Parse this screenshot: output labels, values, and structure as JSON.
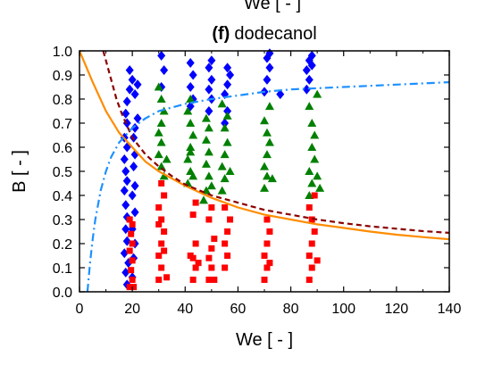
{
  "top_fragment": "We [ - ]",
  "chart_data": {
    "type": "scatter",
    "title_letter": "(f)",
    "title": "dodecanol",
    "xlabel": "We [ - ]",
    "ylabel": "B [ - ]",
    "xlim": [
      0,
      140
    ],
    "ylim": [
      0,
      1.0
    ],
    "xticks": [
      0,
      20,
      40,
      60,
      80,
      100,
      120,
      140
    ],
    "yticks": [
      0.0,
      0.1,
      0.2,
      0.3,
      0.4,
      0.5,
      0.6,
      0.7,
      0.8,
      0.9,
      1.0
    ],
    "ytick_labels": [
      "0.0",
      "0.1",
      "0.2",
      "0.3",
      "0.4",
      "0.5",
      "0.6",
      "0.7",
      "0.8",
      "0.9",
      "1.0"
    ],
    "grid": false,
    "legend": "none",
    "series": [
      {
        "marker": "diamond",
        "color": "#0000ff",
        "points": [
          [
            18,
            0.03
          ],
          [
            17.5,
            0.08
          ],
          [
            18.5,
            0.12
          ],
          [
            17,
            0.16
          ],
          [
            18,
            0.21
          ],
          [
            17.5,
            0.26
          ],
          [
            18,
            0.31
          ],
          [
            17.5,
            0.36
          ],
          [
            17,
            0.42
          ],
          [
            18,
            0.46
          ],
          [
            17.5,
            0.5
          ],
          [
            17,
            0.55
          ],
          [
            18,
            0.6
          ],
          [
            17,
            0.64
          ],
          [
            18,
            0.7
          ],
          [
            17.5,
            0.74
          ],
          [
            18,
            0.79
          ],
          [
            19,
            0.84
          ],
          [
            20,
            0.88
          ],
          [
            19,
            0.92
          ],
          [
            20,
            0.06
          ],
          [
            20.5,
            0.14
          ],
          [
            21,
            0.2
          ],
          [
            20,
            0.26
          ],
          [
            21,
            0.33
          ],
          [
            20,
            0.4
          ],
          [
            21,
            0.44
          ],
          [
            20.5,
            0.52
          ],
          [
            21,
            0.57
          ],
          [
            20.5,
            0.64
          ],
          [
            21,
            0.68
          ],
          [
            22,
            0.72
          ],
          [
            21,
            0.82
          ],
          [
            22,
            0.86
          ],
          [
            31,
            0.85
          ],
          [
            32,
            0.92
          ],
          [
            31,
            0.98
          ],
          [
            42,
            0.77
          ],
          [
            43,
            0.8
          ],
          [
            42,
            0.85
          ],
          [
            43,
            0.9
          ],
          [
            42,
            0.95
          ],
          [
            49,
            0.75
          ],
          [
            50,
            0.8
          ],
          [
            49,
            0.84
          ],
          [
            50,
            0.88
          ],
          [
            49,
            0.93
          ],
          [
            50,
            0.96
          ],
          [
            55,
            0.7
          ],
          [
            56,
            0.75
          ],
          [
            55,
            0.82
          ],
          [
            56,
            0.86
          ],
          [
            57,
            0.9
          ],
          [
            56,
            0.93
          ],
          [
            70,
            0.83
          ],
          [
            71,
            0.88
          ],
          [
            72,
            0.93
          ],
          [
            71,
            0.97
          ],
          [
            72,
            0.99
          ],
          [
            76,
            0.82
          ],
          [
            86,
            0.84
          ],
          [
            87,
            0.88
          ],
          [
            86,
            0.92
          ],
          [
            87,
            0.96
          ],
          [
            88,
            0.98
          ],
          [
            88,
            0.94
          ]
        ]
      },
      {
        "marker": "triangle",
        "color": "#008000",
        "points": [
          [
            30,
            0.57
          ],
          [
            31,
            0.62
          ],
          [
            30,
            0.66
          ],
          [
            31,
            0.7
          ],
          [
            32,
            0.75
          ],
          [
            31,
            0.8
          ],
          [
            30,
            0.85
          ],
          [
            31,
            0.52
          ],
          [
            32,
            0.48
          ],
          [
            33,
            0.55
          ],
          [
            41,
            0.45
          ],
          [
            42,
            0.5
          ],
          [
            41,
            0.55
          ],
          [
            42,
            0.6
          ],
          [
            43,
            0.65
          ],
          [
            42,
            0.7
          ],
          [
            41,
            0.75
          ],
          [
            42,
            0.8
          ],
          [
            43,
            0.48
          ],
          [
            42,
            0.58
          ],
          [
            47,
            0.38
          ],
          [
            48,
            0.42
          ],
          [
            49,
            0.48
          ],
          [
            48,
            0.53
          ],
          [
            49,
            0.58
          ],
          [
            48,
            0.63
          ],
          [
            49,
            0.68
          ],
          [
            48,
            0.72
          ],
          [
            50,
            0.44
          ],
          [
            54,
            0.42
          ],
          [
            55,
            0.47
          ],
          [
            54,
            0.52
          ],
          [
            55,
            0.57
          ],
          [
            56,
            0.62
          ],
          [
            55,
            0.68
          ],
          [
            56,
            0.73
          ],
          [
            54,
            0.78
          ],
          [
            57,
            0.5
          ],
          [
            70,
            0.43
          ],
          [
            71,
            0.48
          ],
          [
            70,
            0.52
          ],
          [
            71,
            0.57
          ],
          [
            72,
            0.62
          ],
          [
            71,
            0.66
          ],
          [
            70,
            0.71
          ],
          [
            72,
            0.77
          ],
          [
            73,
            0.47
          ],
          [
            87,
            0.4
          ],
          [
            88,
            0.45
          ],
          [
            87,
            0.5
          ],
          [
            89,
            0.55
          ],
          [
            88,
            0.6
          ],
          [
            89,
            0.65
          ],
          [
            88,
            0.7
          ],
          [
            87,
            0.77
          ],
          [
            90,
            0.82
          ],
          [
            91,
            0.43
          ],
          [
            90,
            0.48
          ]
        ]
      },
      {
        "marker": "square",
        "color": "#ff0000",
        "points": [
          [
            19,
            0.02
          ],
          [
            20,
            0.05
          ],
          [
            19.5,
            0.09
          ],
          [
            20,
            0.13
          ],
          [
            19,
            0.17
          ],
          [
            20,
            0.2
          ],
          [
            19.5,
            0.24
          ],
          [
            20,
            0.28
          ],
          [
            19,
            0.3
          ],
          [
            20.5,
            0.02
          ],
          [
            30,
            0.05
          ],
          [
            31,
            0.1
          ],
          [
            30,
            0.15
          ],
          [
            31,
            0.2
          ],
          [
            32,
            0.25
          ],
          [
            31,
            0.3
          ],
          [
            30,
            0.35
          ],
          [
            32,
            0.4
          ],
          [
            31,
            0.45
          ],
          [
            33,
            0.06
          ],
          [
            32,
            0.17
          ],
          [
            30,
            0.28
          ],
          [
            43,
            0.05
          ],
          [
            44,
            0.1
          ],
          [
            43,
            0.14
          ],
          [
            44,
            0.2
          ],
          [
            43,
            0.32
          ],
          [
            44,
            0.37
          ],
          [
            45,
            0.12
          ],
          [
            42,
            0.15
          ],
          [
            49,
            0.05
          ],
          [
            50,
            0.1
          ],
          [
            49,
            0.14
          ],
          [
            50,
            0.18
          ],
          [
            51,
            0.22
          ],
          [
            49,
            0.3
          ],
          [
            50,
            0.35
          ],
          [
            51,
            0.05
          ],
          [
            55,
            0.1
          ],
          [
            56,
            0.15
          ],
          [
            55,
            0.2
          ],
          [
            56,
            0.25
          ],
          [
            57,
            0.3
          ],
          [
            55,
            0.35
          ],
          [
            70,
            0.05
          ],
          [
            71,
            0.1
          ],
          [
            70,
            0.15
          ],
          [
            71,
            0.2
          ],
          [
            72,
            0.25
          ],
          [
            71,
            0.3
          ],
          [
            72,
            0.12
          ],
          [
            87,
            0.05
          ],
          [
            88,
            0.1
          ],
          [
            87,
            0.15
          ],
          [
            88,
            0.2
          ],
          [
            89,
            0.25
          ],
          [
            88,
            0.3
          ],
          [
            87,
            0.35
          ],
          [
            89,
            0.4
          ],
          [
            90,
            0.13
          ]
        ]
      }
    ],
    "curves": [
      {
        "style": "solid",
        "color": "#ff8c00",
        "points": [
          [
            0,
            1.0
          ],
          [
            5,
            0.87
          ],
          [
            10,
            0.75
          ],
          [
            15,
            0.66
          ],
          [
            20,
            0.6
          ],
          [
            25,
            0.54
          ],
          [
            30,
            0.5
          ],
          [
            40,
            0.44
          ],
          [
            50,
            0.39
          ],
          [
            60,
            0.35
          ],
          [
            70,
            0.32
          ],
          [
            80,
            0.3
          ],
          [
            90,
            0.28
          ],
          [
            100,
            0.265
          ],
          [
            110,
            0.25
          ],
          [
            120,
            0.237
          ],
          [
            130,
            0.227
          ],
          [
            140,
            0.218
          ]
        ]
      },
      {
        "style": "dashed",
        "color": "#8b0000",
        "points": [
          [
            9,
            1.0
          ],
          [
            10,
            0.96
          ],
          [
            12,
            0.88
          ],
          [
            14,
            0.8
          ],
          [
            16,
            0.74
          ],
          [
            18,
            0.69
          ],
          [
            20,
            0.64
          ],
          [
            25,
            0.57
          ],
          [
            30,
            0.52
          ],
          [
            35,
            0.48
          ],
          [
            40,
            0.445
          ],
          [
            50,
            0.4
          ],
          [
            60,
            0.37
          ],
          [
            70,
            0.34
          ],
          [
            80,
            0.32
          ],
          [
            90,
            0.3
          ],
          [
            100,
            0.285
          ],
          [
            110,
            0.272
          ],
          [
            120,
            0.262
          ],
          [
            130,
            0.252
          ],
          [
            140,
            0.245
          ]
        ]
      },
      {
        "style": "dash-dot",
        "color": "#1e90ff",
        "points": [
          [
            3,
            0.0
          ],
          [
            4,
            0.12
          ],
          [
            5,
            0.22
          ],
          [
            6,
            0.3
          ],
          [
            8,
            0.42
          ],
          [
            10,
            0.5
          ],
          [
            12,
            0.56
          ],
          [
            15,
            0.62
          ],
          [
            20,
            0.68
          ],
          [
            25,
            0.72
          ],
          [
            30,
            0.75
          ],
          [
            40,
            0.78
          ],
          [
            50,
            0.8
          ],
          [
            60,
            0.815
          ],
          [
            70,
            0.83
          ],
          [
            80,
            0.84
          ],
          [
            100,
            0.85
          ],
          [
            120,
            0.86
          ],
          [
            140,
            0.87
          ]
        ]
      }
    ]
  }
}
